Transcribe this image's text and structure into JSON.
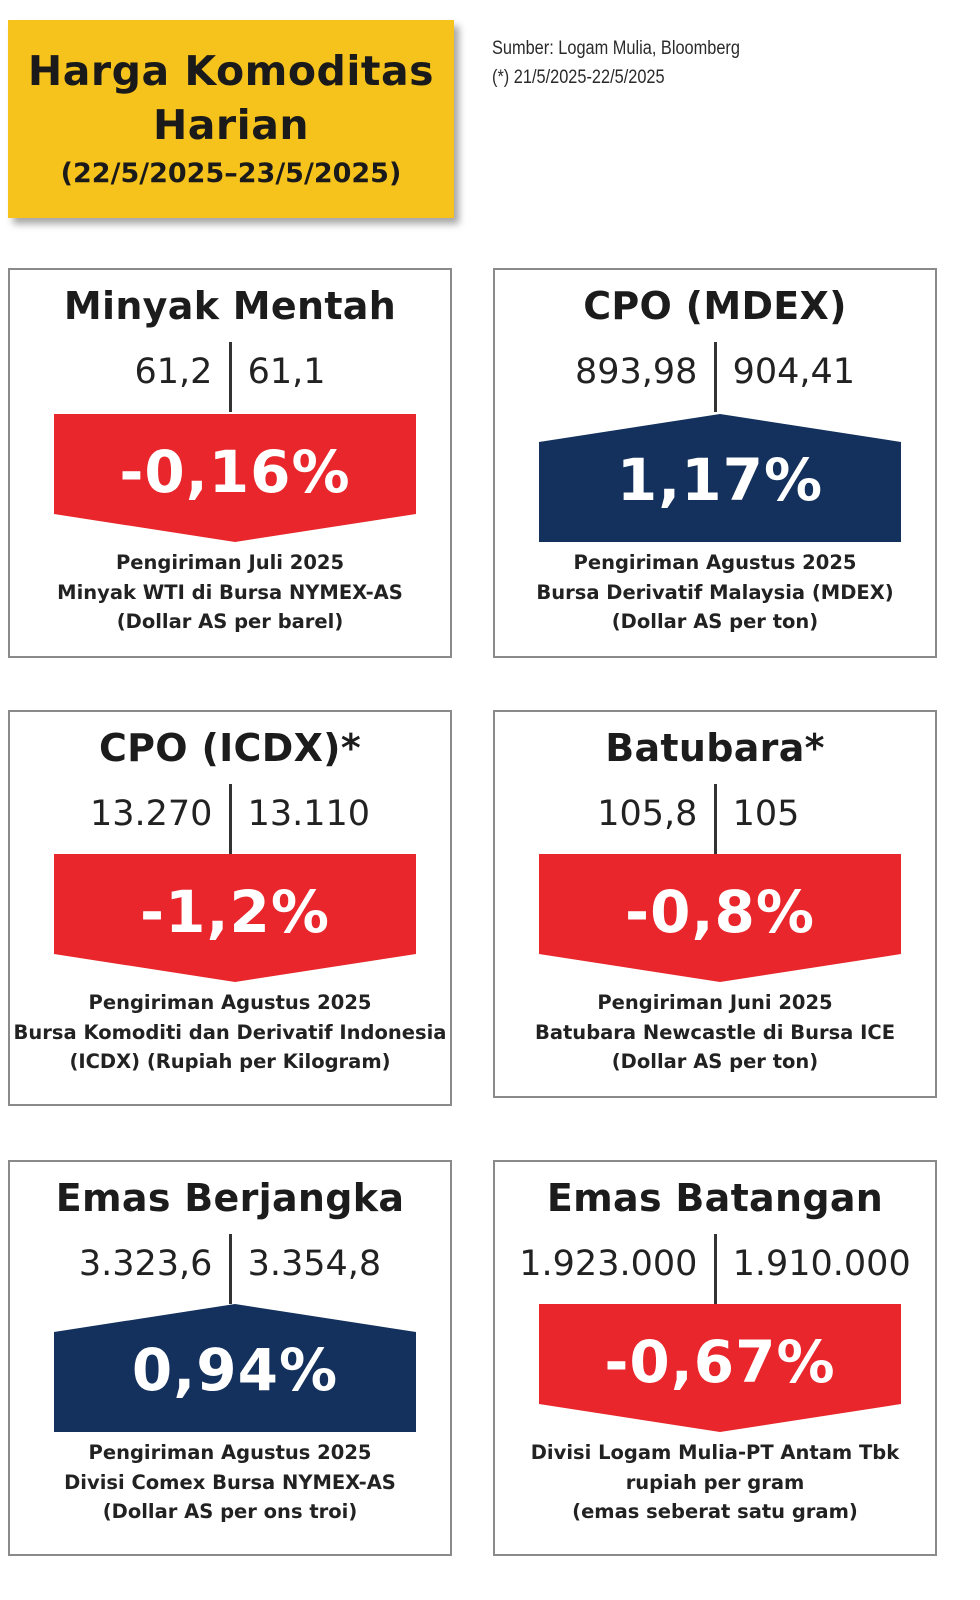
{
  "header": {
    "title_line1": "Harga Komoditas",
    "title_line2": "Harian",
    "dates": "(22/5/2025–23/5/2025)"
  },
  "source": {
    "line1": "Sumber: Logam Mulia, Bloomberg",
    "line2": "(*) 21/5/2025-22/5/2025"
  },
  "colors": {
    "title_bg": "#f6c21c",
    "down": "#e8262b",
    "up": "#13315c"
  },
  "cards": [
    {
      "title": "Minyak Mentah",
      "prev": "61,2",
      "curr": "61,1",
      "change": "-0,16%",
      "direction": "down",
      "desc1": "Pengiriman Juli 2025",
      "desc2": "Minyak WTI di Bursa NYMEX-AS",
      "desc3": "(Dollar AS per barel)"
    },
    {
      "title": "CPO (MDEX)",
      "prev": "893,98",
      "curr": "904,41",
      "change": "1,17%",
      "direction": "up",
      "desc1": "Pengiriman Agustus 2025",
      "desc2": "Bursa Derivatif Malaysia (MDEX)",
      "desc3": "(Dollar AS per ton)"
    },
    {
      "title": "CPO (ICDX)*",
      "prev": "13.270",
      "curr": "13.110",
      "change": "-1,2%",
      "direction": "down",
      "desc1": "Pengiriman Agustus 2025",
      "desc2": "Bursa Komoditi dan Derivatif Indonesia",
      "desc3": "(ICDX) (Rupiah per Kilogram)"
    },
    {
      "title": "Batubara*",
      "prev": "105,8",
      "curr": "105",
      "change": "-0,8%",
      "direction": "down",
      "desc1": "Pengiriman Juni 2025",
      "desc2": "Batubara Newcastle di Bursa ICE",
      "desc3": "(Dollar AS per ton)"
    },
    {
      "title": "Emas Berjangka",
      "prev": "3.323,6",
      "curr": "3.354,8",
      "change": "0,94%",
      "direction": "up",
      "desc1": "Pengiriman Agustus 2025",
      "desc2": "Divisi Comex Bursa NYMEX-AS",
      "desc3": "(Dollar AS per ons troi)"
    },
    {
      "title": "Emas Batangan",
      "prev": "1.923.000",
      "curr": "1.910.000",
      "change": "-0,67%",
      "direction": "down",
      "desc1": "Divisi Logam Mulia-PT Antam Tbk",
      "desc2": "rupiah per gram",
      "desc3": "(emas seberat satu gram)"
    }
  ]
}
